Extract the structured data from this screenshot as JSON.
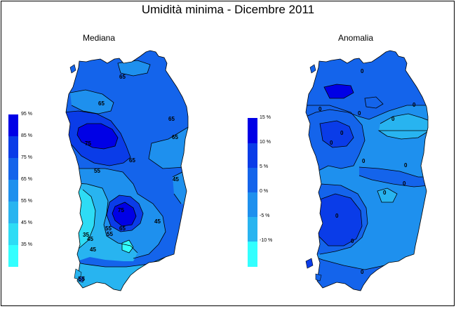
{
  "title": "Umidità minima - Dicembre 2011",
  "panels": {
    "left": {
      "subtitle": "Mediana",
      "legend": [
        "95 %",
        "85 %",
        "75 %",
        "65 %",
        "55 %",
        "45 %",
        "35 %"
      ],
      "legend_colors": [
        "#0000e6",
        "#0a3ce8",
        "#1464eb",
        "#1e90ee",
        "#28b4f0",
        "#2edcf5",
        "#33ffff"
      ],
      "contour_labels": [
        "65",
        "65",
        "65",
        "65",
        "65",
        "75",
        "55",
        "45",
        "75",
        "65",
        "55",
        "45",
        "35",
        "45",
        "55",
        "45",
        "55"
      ]
    },
    "right": {
      "subtitle": "Anomalia",
      "legend": [
        "15 %",
        "10 %",
        "5 %",
        "0 %",
        "-5 %",
        "-10 %"
      ],
      "legend_colors": [
        "#0000e6",
        "#0a3ce8",
        "#1464eb",
        "#1e90ee",
        "#28b4f0",
        "#33ffff"
      ],
      "contour_labels": [
        "0",
        "0",
        "0",
        "0",
        "0",
        "0",
        "0",
        "0",
        "0",
        "0",
        "0",
        "0",
        "0",
        "0"
      ]
    }
  }
}
